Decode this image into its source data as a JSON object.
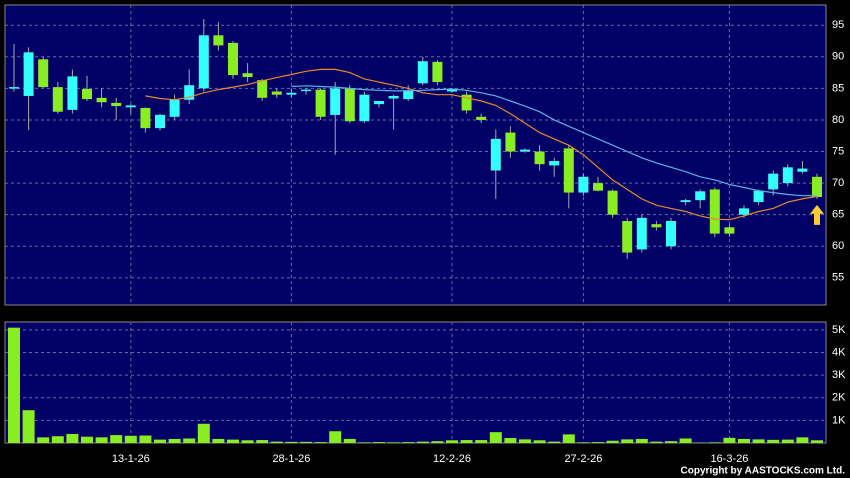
{
  "chart_data": {
    "type": "candlestick",
    "categories": [
      null,
      null,
      null,
      null,
      null,
      null,
      null,
      null,
      "13-1-26",
      null,
      null,
      null,
      null,
      null,
      null,
      null,
      null,
      null,
      null,
      "28-1-26",
      null,
      null,
      null,
      null,
      null,
      null,
      null,
      null,
      null,
      null,
      "12-2-26",
      null,
      null,
      null,
      null,
      null,
      null,
      null,
      null,
      "27-2-26",
      null,
      null,
      null,
      null,
      null,
      null,
      null,
      null,
      null,
      "16-3-26",
      null,
      null,
      null,
      null,
      null,
      null
    ],
    "open": [
      85,
      83.8,
      89.6,
      85.2,
      81.6,
      84.9,
      83.5,
      82.7,
      82,
      81.9,
      78.7,
      80.5,
      83.2,
      85,
      93.4,
      92.2,
      87.4,
      86.3,
      84.5,
      84,
      84.6,
      84.8,
      80.8,
      85,
      79.8,
      82.5,
      83.4,
      83.3,
      85.8,
      89.2,
      84.5,
      84,
      80.5,
      72,
      78,
      75,
      75,
      72.8,
      75.5,
      68.5,
      70,
      68.8,
      64,
      59.5,
      63.5,
      60,
      67,
      67.3,
      69,
      63,
      65,
      67,
      69,
      70,
      71.8,
      71
    ],
    "high": [
      92,
      91.5,
      90,
      86,
      88,
      87,
      85,
      83.5,
      82.5,
      82,
      81,
      84,
      88,
      96,
      95.5,
      92.5,
      89,
      86.5,
      85,
      85,
      85,
      85,
      86,
      85.5,
      84.5,
      83,
      84,
      85.5,
      90,
      89.5,
      85,
      84.5,
      81,
      78.5,
      79,
      75.5,
      76,
      74,
      76,
      71.5,
      71,
      69,
      64.5,
      65,
      64,
      64.5,
      67.5,
      69,
      69.3,
      63.5,
      66.5,
      69,
      72,
      73,
      73.5,
      71.5
    ],
    "low": [
      84.5,
      78.4,
      85,
      81,
      81,
      83,
      82,
      80,
      81,
      78,
      78.3,
      80,
      82.5,
      84.5,
      91,
      86.5,
      86,
      83,
      83.5,
      83.5,
      84,
      80,
      74.5,
      79.5,
      79.5,
      82,
      78.5,
      83,
      85.5,
      85.5,
      84.3,
      81,
      79.5,
      67.5,
      74,
      74.8,
      72,
      71,
      66,
      68,
      68.7,
      64.5,
      58,
      59,
      62.5,
      59.5,
      66.5,
      66,
      61.5,
      61.5,
      64.5,
      66.5,
      68,
      69.5,
      71.5,
      67.5
    ],
    "close": [
      85.2,
      90.7,
      85.2,
      81.3,
      86.9,
      83.3,
      82.8,
      82.2,
      82.3,
      78.7,
      80.8,
      83.2,
      85.5,
      93.4,
      91.8,
      87.1,
      86.8,
      83.5,
      84,
      84.3,
      84.8,
      80.5,
      85,
      79.8,
      84,
      83,
      83.8,
      84.7,
      89.3,
      86,
      84.9,
      81.5,
      80,
      77,
      75,
      75.3,
      73,
      73.5,
      68.5,
      71,
      68.8,
      65,
      59,
      64.5,
      63,
      64,
      67.3,
      68.7,
      62,
      62,
      66,
      68.8,
      71.5,
      72.5,
      72.3,
      67.8
    ],
    "volume": [
      5100,
      1450,
      250,
      300,
      400,
      280,
      250,
      350,
      320,
      330,
      150,
      180,
      200,
      850,
      180,
      150,
      120,
      130,
      60,
      50,
      50,
      40,
      520,
      180,
      30,
      40,
      30,
      40,
      60,
      80,
      120,
      130,
      130,
      480,
      220,
      160,
      120,
      60,
      380,
      30,
      40,
      100,
      160,
      180,
      60,
      80,
      200,
      20,
      30,
      230,
      180,
      160,
      140,
      150,
      250,
      120
    ],
    "up_color": "#33ffff",
    "down_color": "#88ee22",
    "series": [
      {
        "color": "#e8892c",
        "values": [
          null,
          null,
          null,
          null,
          null,
          null,
          null,
          null,
          null,
          83.8,
          83.4,
          83.2,
          83.6,
          84.3,
          84.8,
          85.2,
          85.6,
          86.2,
          86.7,
          87.2,
          87.7,
          88,
          88,
          87.5,
          86.5,
          86,
          85.5,
          85,
          84.3,
          84,
          84,
          83.5,
          83,
          82.3,
          81,
          79.5,
          78,
          77,
          76,
          74.5,
          72.5,
          70.5,
          69,
          67.5,
          66.5,
          66,
          65.5,
          64.8,
          64.3,
          64.2,
          64.8,
          65.5,
          66,
          67,
          67.5,
          67.9
        ]
      },
      {
        "color": "#5ab4e6",
        "values": [
          null,
          null,
          null,
          null,
          null,
          null,
          null,
          null,
          null,
          null,
          null,
          null,
          null,
          null,
          null,
          null,
          null,
          null,
          null,
          85.3,
          85.4,
          85.3,
          85.2,
          85,
          84.8,
          84.7,
          84.6,
          84.6,
          84.7,
          84.8,
          84.9,
          84.7,
          84.3,
          83.8,
          83,
          82.2,
          81.3,
          80,
          79,
          78,
          77,
          76,
          75,
          74,
          73.2,
          72.5,
          71.8,
          71,
          70.5,
          69.8,
          69.3,
          68.8,
          68.5,
          68.2,
          68,
          68
        ]
      }
    ],
    "ylim": [
      50.7,
      98.2
    ],
    "yticks": [
      55,
      60,
      65,
      70,
      75,
      80,
      85,
      90,
      95
    ],
    "y2lim": [
      0,
      5350
    ],
    "y2ticks": [
      {
        "value": 1000,
        "label": "1K"
      },
      {
        "value": 2000,
        "label": "2K"
      },
      {
        "value": 3000,
        "label": "3K"
      },
      {
        "value": 4000,
        "label": "4K"
      },
      {
        "value": 5000,
        "label": "5K"
      }
    ],
    "grid": true,
    "copyright": "Copyright by AASTOCKS.com Ltd."
  }
}
